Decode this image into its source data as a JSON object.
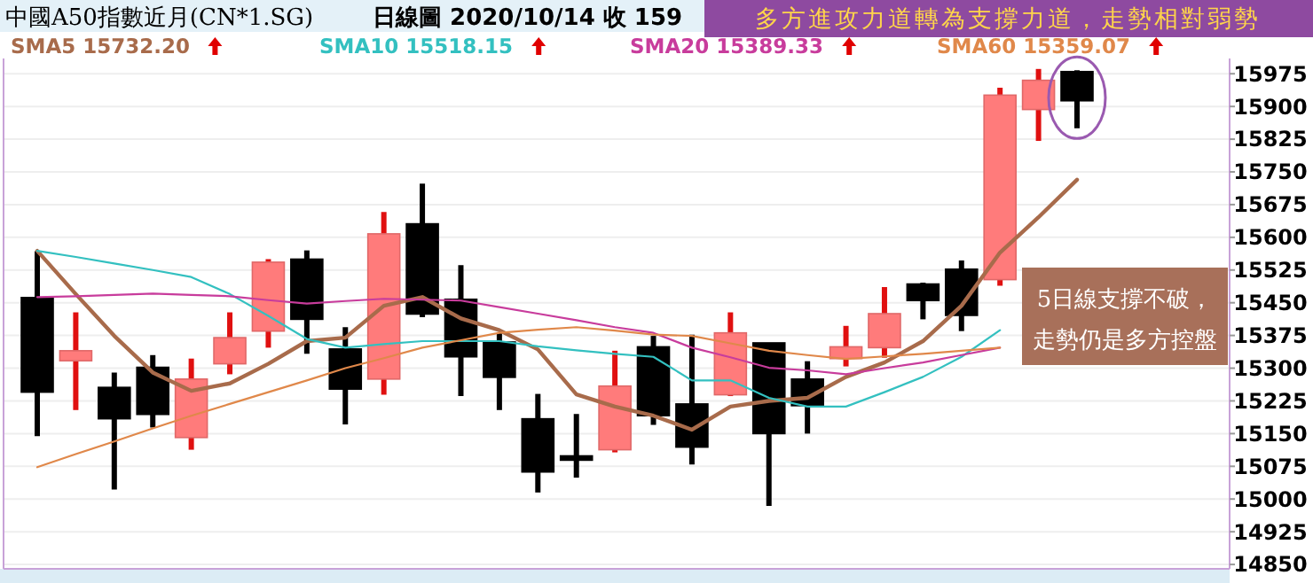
{
  "chart_data": {
    "type": "candlestick",
    "title": "中國A50指數近月(CN*1.SG)",
    "subtitle": "日線圖  2020/10/14  收 159",
    "categories": [
      null,
      null,
      null,
      null,
      null,
      null,
      null,
      null,
      null,
      null,
      null,
      null,
      null,
      null,
      null,
      null,
      null,
      null,
      null,
      null,
      null,
      null,
      null,
      null,
      null,
      null,
      null,
      null
    ],
    "ohlc": [
      [
        15462,
        15568,
        15144,
        15245
      ],
      [
        15317,
        15428,
        15204,
        15340
      ],
      [
        15256,
        15290,
        15022,
        15184
      ],
      [
        15302,
        15330,
        15164,
        15194
      ],
      [
        15141,
        15322,
        15113,
        15275
      ],
      [
        15310,
        15428,
        15286,
        15370
      ],
      [
        15385,
        15550,
        15347,
        15543
      ],
      [
        15550,
        15570,
        15333,
        15412
      ],
      [
        15344,
        15394,
        15171,
        15252
      ],
      [
        15275,
        15658,
        15239,
        15608
      ],
      [
        15631,
        15723,
        15417,
        15424
      ],
      [
        15458,
        15536,
        15236,
        15326
      ],
      [
        15360,
        15381,
        15204,
        15279
      ],
      [
        15184,
        15241,
        15015,
        15062
      ],
      [
        15099,
        15195,
        15049,
        15089
      ],
      [
        15113,
        15340,
        15107,
        15259
      ],
      [
        15349,
        15374,
        15170,
        15191
      ],
      [
        15218,
        15377,
        15079,
        15119
      ],
      [
        15239,
        15428,
        15236,
        15381
      ],
      [
        15358,
        15358,
        14984,
        15150
      ],
      [
        15275,
        15316,
        15150,
        15214
      ],
      [
        15322,
        15397,
        15304,
        15349
      ],
      [
        15347,
        15486,
        15324,
        15425
      ],
      [
        15493,
        15496,
        15412,
        15455
      ],
      [
        15527,
        15547,
        15385,
        15421
      ],
      [
        15503,
        15943,
        15489,
        15926
      ],
      [
        15893,
        15986,
        15821,
        15960
      ],
      [
        15980,
        15983,
        15850,
        15913
      ]
    ],
    "colors": [
      "#000000",
      "#ff7b7b",
      "#000000",
      "#000000",
      "#ff7b7b",
      "#ff7b7b",
      "#ff7b7b",
      "#000000",
      "#000000",
      "#ff7b7b",
      "#000000",
      "#000000",
      "#000000",
      "#000000",
      "#000000",
      "#ff7b7b",
      "#000000",
      "#000000",
      "#ff7b7b",
      "#000000",
      "#000000",
      "#ff7b7b",
      "#ff7b7b",
      "#000000",
      "#000000",
      "#ff7b7b",
      "#ff7b7b",
      "#000000"
    ],
    "series": [
      {
        "name": "SMA5 15732.20",
        "type": "line",
        "color": "#a86b4b",
        "values": [
          15569,
          15470,
          15374,
          15290,
          15248,
          15265,
          15310,
          15362,
          15370,
          15443,
          15463,
          15414,
          15387,
          15343,
          15240,
          15212,
          15191,
          15159,
          15212,
          15225,
          15232,
          15280,
          15313,
          15362,
          15443,
          15565,
          15646,
          15732
        ]
      },
      {
        "name": "SMA10 15518.15",
        "type": "line",
        "color": "#33c0c0",
        "values": [
          15569,
          15555,
          15540,
          15525,
          15509,
          15470,
          15420,
          15367,
          15347,
          15355,
          15362,
          15362,
          15362,
          15350,
          15341,
          15333,
          15326,
          15272,
          15272,
          15232,
          15212,
          15212,
          15245,
          15280,
          15326,
          15387,
          null,
          null
        ]
      },
      {
        "name": "SMA20 15389.33",
        "type": "line",
        "color": "#c83c9c",
        "values": [
          15463,
          15465,
          15468,
          15471,
          15468,
          15465,
          15456,
          15448,
          15454,
          15459,
          15457,
          15455,
          15440,
          15425,
          15410,
          15394,
          15381,
          15347,
          15325,
          15301,
          15295,
          15286,
          15300,
          15313,
          15330,
          15347,
          null,
          null
        ]
      },
      {
        "name": "SMA60 15359.07",
        "type": "line",
        "color": "#e0884a",
        "values": [
          15073,
          15103,
          15132,
          15162,
          15191,
          15218,
          15245,
          15272,
          15300,
          15323,
          15347,
          15364,
          15381,
          15388,
          15394,
          15386,
          15377,
          15374,
          15357,
          15340,
          15330,
          15321,
          15327,
          15333,
          15340,
          15347,
          null,
          null
        ]
      }
    ],
    "ylim": [
      14840,
      16010
    ],
    "yticks": [
      14850,
      14925,
      15000,
      15075,
      15150,
      15225,
      15300,
      15375,
      15450,
      15525,
      15600,
      15675,
      15750,
      15825,
      15900,
      15975
    ],
    "grid": "y",
    "legend": "top left",
    "annotations": [
      "多方進攻力道轉為支撐力道，走勢相對弱勢",
      "5日線支撐不破，走勢仍是多方控盤"
    ]
  }
}
